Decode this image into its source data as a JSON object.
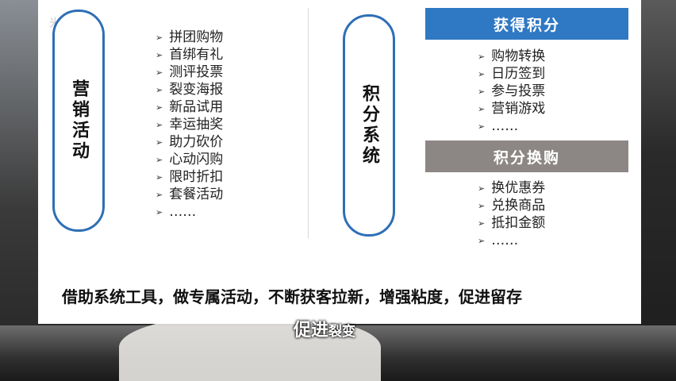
{
  "watermark": "米...",
  "left": {
    "title": "营销活动",
    "items": [
      "拼团购物",
      "首绑有礼",
      "测评投票",
      "裂变海报",
      "新品试用",
      "幸运抽奖",
      "助力砍价",
      "心动闪购",
      "限时折扣",
      "套餐活动",
      "……"
    ]
  },
  "middle": {
    "title": "积分系统"
  },
  "right": {
    "earn_title": "获得积分",
    "earn_items": [
      "购物转换",
      "日历签到",
      "参与投票",
      "营销游戏",
      "……"
    ],
    "redeem_title": "积分换购",
    "redeem_items": [
      "换优惠券",
      "兑换商品",
      "抵扣金额",
      "……"
    ]
  },
  "slogan": "借助系统工具，做专属活动，不断获客拉新，增强粘度，促进留存",
  "subtitle": {
    "main": "促进",
    "small": "裂变"
  },
  "colors": {
    "accent_blue": "#2f78c4",
    "pill_border": "#2e6fb5",
    "gray_banner": "#8c8784"
  }
}
